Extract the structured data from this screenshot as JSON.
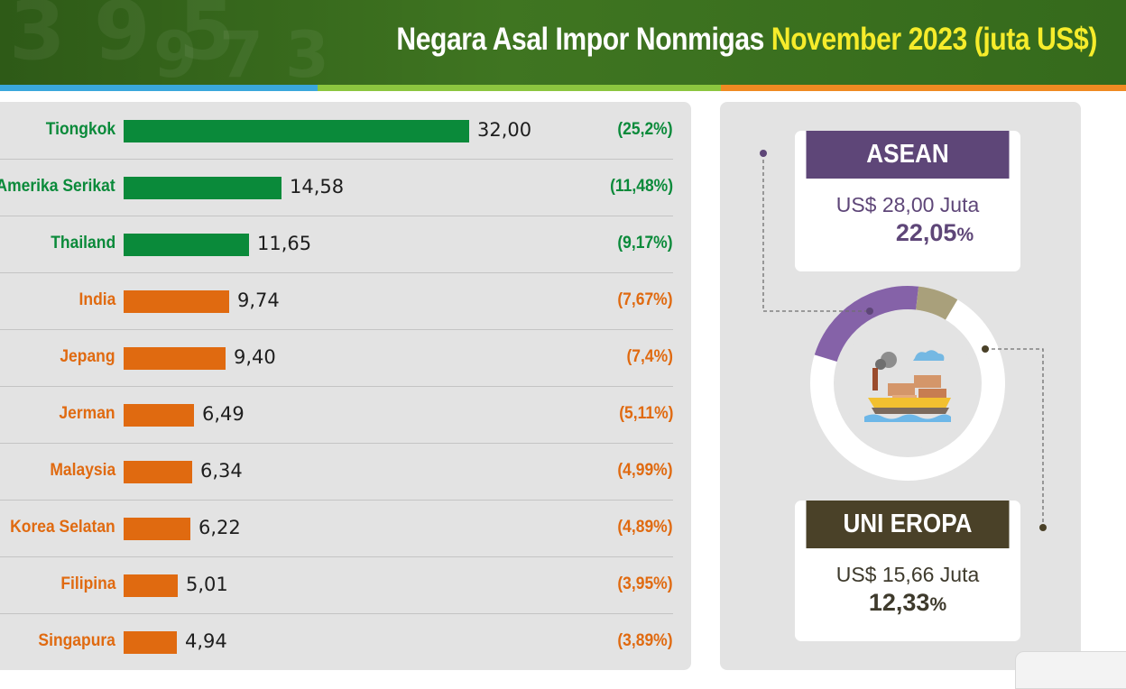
{
  "header": {
    "title_main": "Negara Asal Impor Nonmigas",
    "title_highlight": "November 2023 (juta US$)"
  },
  "colors": {
    "green": "#0a8a3a",
    "orange": "#e06a10",
    "asean_purple": "#5e4678",
    "eu_brown": "#4a4128",
    "donut_purple": "#8562a8",
    "donut_tan": "#a9a07b"
  },
  "chart_data": {
    "type": "bar",
    "orientation": "horizontal",
    "categories": [
      "Tiongkok",
      "Amerika Serikat",
      "Thailand",
      "India",
      "Jepang",
      "Jerman",
      "Malaysia",
      "Korea Selatan",
      "Filipina",
      "Singapura"
    ],
    "values": [
      32.0,
      14.58,
      11.65,
      9.74,
      9.4,
      6.49,
      6.34,
      6.22,
      5.01,
      4.94
    ],
    "value_labels": [
      "32,00",
      "14,58",
      "11,65",
      "9,74",
      "9,40",
      "6,49",
      "6,34",
      "6,22",
      "5,01",
      "4,94"
    ],
    "shares": [
      "(25,2%)",
      "(11,48%)",
      "(9,17%)",
      "(7,67%)",
      "(7,4%)",
      "(5,11%)",
      "(4,99%)",
      "(4,89%)",
      "(3,95%)",
      "(3,89%)"
    ],
    "groups": [
      "green",
      "green",
      "green",
      "orange",
      "orange",
      "orange",
      "orange",
      "orange",
      "orange",
      "orange"
    ],
    "xlim": [
      0,
      32
    ]
  },
  "asean": {
    "label": "ASEAN",
    "value_text": "US$ 28,00 Juta",
    "share_number": "22,05",
    "share_unit": "%",
    "share": 22.05
  },
  "eu": {
    "label": "UNI EROPA",
    "value_text": "US$ 15,66 Juta",
    "share_number": "12,33",
    "share_unit": "%",
    "share": 12.33
  },
  "icons": {
    "center": "cargo-ship-icon"
  }
}
